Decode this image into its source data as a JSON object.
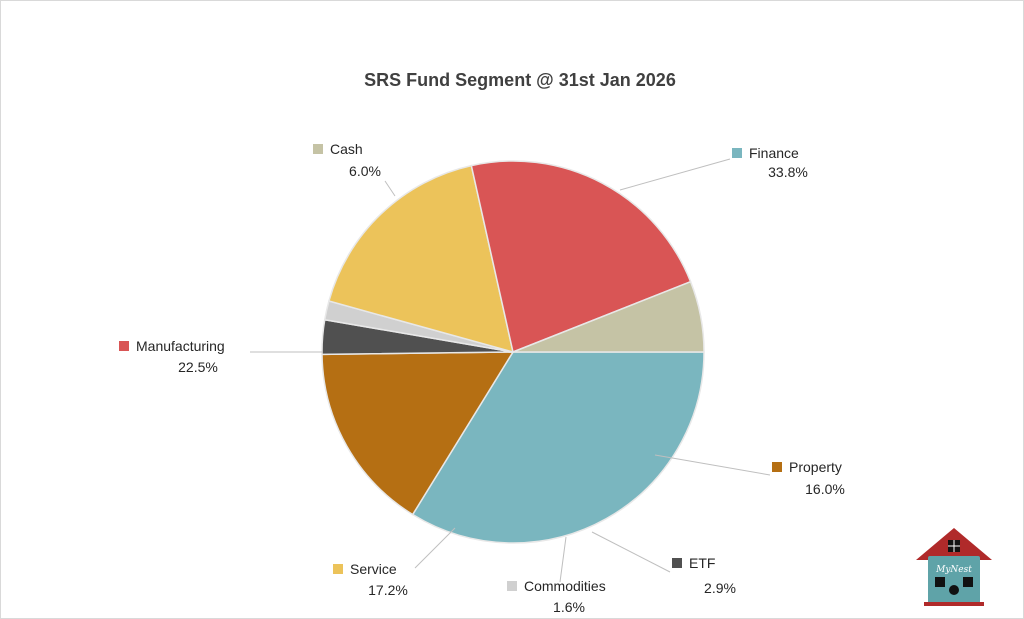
{
  "chart_data": {
    "type": "pie",
    "title": "SRS Fund Segment @ 31st Jan 2026",
    "slices": [
      {
        "name": "Finance",
        "value": 33.8,
        "label": "33.8%",
        "color": "#7ab6bf"
      },
      {
        "name": "Property",
        "value": 16.0,
        "label": "16.0%",
        "color": "#b56f13"
      },
      {
        "name": "ETF",
        "value": 2.9,
        "label": "2.9%",
        "color": "#505050"
      },
      {
        "name": "Commodities",
        "value": 1.6,
        "label": "1.6%",
        "color": "#d0d0d0"
      },
      {
        "name": "Service",
        "value": 17.2,
        "label": "17.2%",
        "color": "#ecc35a"
      },
      {
        "name": "Manufacturing",
        "value": 22.5,
        "label": "22.5%",
        "color": "#d95555"
      },
      {
        "name": "Cash",
        "value": 6.0,
        "label": "6.0%",
        "color": "#c5c3a5"
      }
    ],
    "start_angle_deg": 0,
    "direction": "clockwise",
    "legend": "data labels with leader lines"
  },
  "logo": {
    "text": "MyNest",
    "roof_color": "#b02a2a",
    "wall_color": "#5fa3a8"
  }
}
